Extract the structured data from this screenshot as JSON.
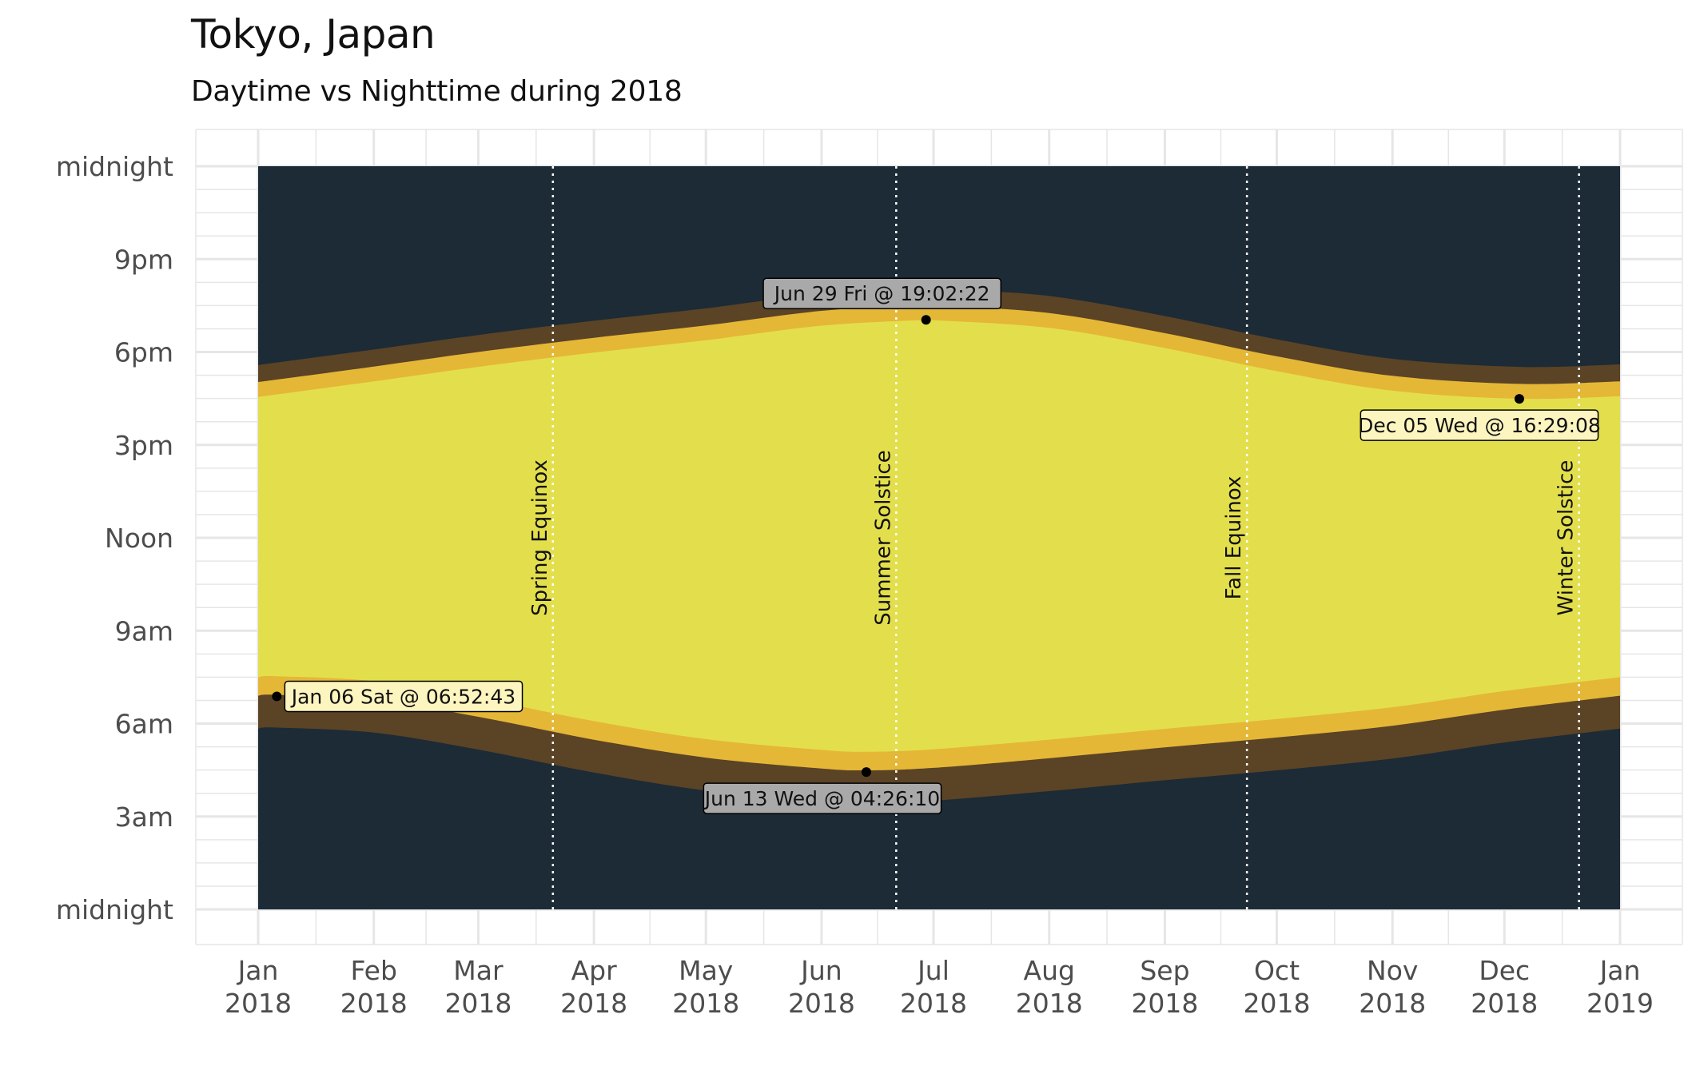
{
  "title": "Tokyo, Japan",
  "subtitle": "Daytime vs Nighttime during 2018",
  "colors": {
    "night": "#1c2b36",
    "twilight_dark": "#5b4326",
    "twilight_orange": "#e5b736",
    "day": "#e3df4c",
    "grid": "#e6e6e6",
    "label_light": "#fdf5bf",
    "label_dark": "#a9a9a9"
  },
  "chart_data": {
    "type": "area",
    "title": "Tokyo, Japan",
    "subtitle": "Daytime vs Nighttime during 2018",
    "x_range": [
      "2018-01-01",
      "2019-01-01"
    ],
    "y_range_hours": [
      0,
      24
    ],
    "y_ticks": [
      {
        "h": 24,
        "label": "midnight"
      },
      {
        "h": 21,
        "label": "9pm"
      },
      {
        "h": 18,
        "label": "6pm"
      },
      {
        "h": 15,
        "label": "3pm"
      },
      {
        "h": 12,
        "label": "Noon"
      },
      {
        "h": 9,
        "label": "9am"
      },
      {
        "h": 6,
        "label": "6am"
      },
      {
        "h": 3,
        "label": "3am"
      },
      {
        "h": 0,
        "label": "midnight"
      }
    ],
    "x_ticks": [
      {
        "date": "2018-01-01",
        "month": "Jan",
        "year": "2018"
      },
      {
        "date": "2018-02-01",
        "month": "Feb",
        "year": "2018"
      },
      {
        "date": "2018-03-01",
        "month": "Mar",
        "year": "2018"
      },
      {
        "date": "2018-04-01",
        "month": "Apr",
        "year": "2018"
      },
      {
        "date": "2018-05-01",
        "month": "May",
        "year": "2018"
      },
      {
        "date": "2018-06-01",
        "month": "Jun",
        "year": "2018"
      },
      {
        "date": "2018-07-01",
        "month": "Jul",
        "year": "2018"
      },
      {
        "date": "2018-08-01",
        "month": "Aug",
        "year": "2018"
      },
      {
        "date": "2018-09-01",
        "month": "Sep",
        "year": "2018"
      },
      {
        "date": "2018-10-01",
        "month": "Oct",
        "year": "2018"
      },
      {
        "date": "2018-11-01",
        "month": "Nov",
        "year": "2018"
      },
      {
        "date": "2018-12-01",
        "month": "Dec",
        "year": "2018"
      },
      {
        "date": "2019-01-01",
        "month": "Jan",
        "year": "2019"
      }
    ],
    "events": [
      {
        "date": "2018-03-21",
        "label": "Spring Equinox"
      },
      {
        "date": "2018-06-21",
        "label": "Summer Solstice"
      },
      {
        "date": "2018-09-23",
        "label": "Fall Equinox"
      },
      {
        "date": "2018-12-21",
        "label": "Winter Solstice"
      }
    ],
    "series": [
      {
        "name": "sunrise",
        "dates": [
          "2018-01-01",
          "2018-01-06",
          "2018-02-01",
          "2018-03-01",
          "2018-04-01",
          "2018-05-01",
          "2018-06-01",
          "2018-06-13",
          "2018-07-01",
          "2018-08-01",
          "2018-09-01",
          "2018-10-01",
          "2018-11-01",
          "2018-12-01",
          "2019-01-01"
        ],
        "hours": [
          6.85,
          6.88,
          6.72,
          6.17,
          5.43,
          4.85,
          4.5,
          4.44,
          4.52,
          4.83,
          5.18,
          5.5,
          5.88,
          6.4,
          6.85
        ]
      },
      {
        "name": "sunset",
        "dates": [
          "2018-01-01",
          "2018-02-01",
          "2018-03-01",
          "2018-04-01",
          "2018-05-01",
          "2018-06-01",
          "2018-06-29",
          "2018-07-01",
          "2018-08-01",
          "2018-09-01",
          "2018-10-01",
          "2018-11-01",
          "2018-12-05",
          "2019-01-01"
        ],
        "hours": [
          16.55,
          17.05,
          17.52,
          17.98,
          18.38,
          18.85,
          19.04,
          19.03,
          18.78,
          18.13,
          17.38,
          16.75,
          16.49,
          16.57
        ]
      }
    ],
    "twilight_hours": [
      0.48,
      0.55
    ],
    "annotations": [
      {
        "date": "2018-01-06",
        "hour": 6.879,
        "label": "Jan 06 Sat @ 06:52:43",
        "style": "light",
        "side": "right"
      },
      {
        "date": "2018-06-13",
        "hour": 4.436,
        "label": "Jun 13 Wed @ 04:26:10",
        "style": "dark",
        "side": "below"
      },
      {
        "date": "2018-06-29",
        "hour": 19.039,
        "label": "Jun 29 Fri @ 19:02:22",
        "style": "dark",
        "side": "above"
      },
      {
        "date": "2018-12-05",
        "hour": 16.486,
        "label": "Dec 05 Wed @ 16:29:08",
        "style": "light",
        "side": "below"
      }
    ]
  }
}
